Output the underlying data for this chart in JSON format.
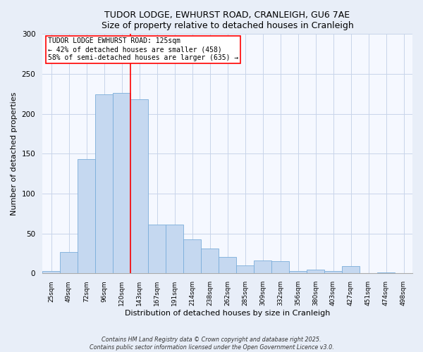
{
  "title": "TUDOR LODGE, EWHURST ROAD, CRANLEIGH, GU6 7AE",
  "subtitle": "Size of property relative to detached houses in Cranleigh",
  "xlabel": "Distribution of detached houses by size in Cranleigh",
  "ylabel": "Number of detached properties",
  "bar_labels": [
    "25sqm",
    "49sqm",
    "72sqm",
    "96sqm",
    "120sqm",
    "143sqm",
    "167sqm",
    "191sqm",
    "214sqm",
    "238sqm",
    "262sqm",
    "285sqm",
    "309sqm",
    "332sqm",
    "356sqm",
    "380sqm",
    "403sqm",
    "427sqm",
    "451sqm",
    "474sqm",
    "498sqm"
  ],
  "bar_values": [
    3,
    27,
    143,
    224,
    226,
    218,
    61,
    61,
    43,
    31,
    21,
    10,
    16,
    15,
    3,
    5,
    3,
    9,
    0,
    1,
    0
  ],
  "bar_color": "#c5d8f0",
  "bar_edgecolor": "#7aadda",
  "vline_x": 4.5,
  "vline_color": "red",
  "annotation_title": "TUDOR LODGE EWHURST ROAD: 125sqm",
  "annotation_line2": "← 42% of detached houses are smaller (458)",
  "annotation_line3": "58% of semi-detached houses are larger (635) →",
  "annotation_box_facecolor": "white",
  "annotation_box_edgecolor": "red",
  "ylim": [
    0,
    300
  ],
  "yticks": [
    0,
    50,
    100,
    150,
    200,
    250,
    300
  ],
  "footer1": "Contains HM Land Registry data © Crown copyright and database right 2025.",
  "footer2": "Contains public sector information licensed under the Open Government Licence v3.0.",
  "bg_color": "#e8eef8",
  "plot_bg_color": "#f5f8ff",
  "grid_color": "#c8d4ea"
}
